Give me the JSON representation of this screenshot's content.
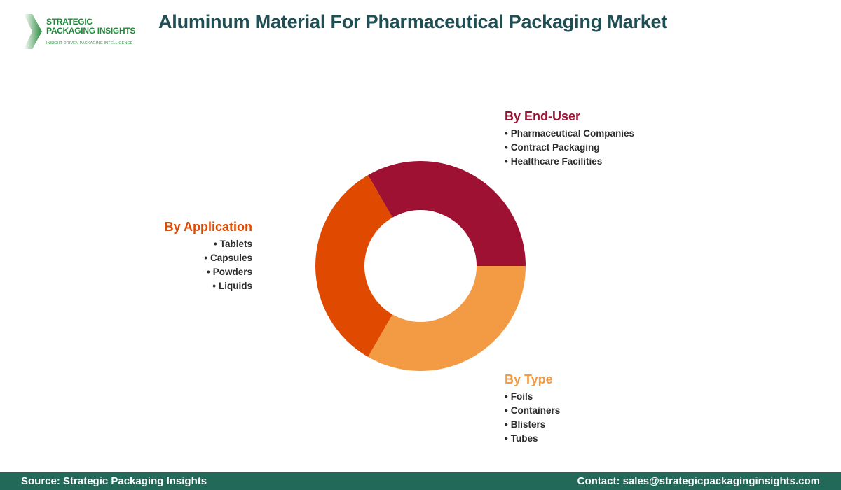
{
  "logo": {
    "line1": "STRATEGIC",
    "line2": "PACKAGING INSIGHTS",
    "tagline": "INSIGHT-DRIVEN PACKAGING INTELLIGENCE"
  },
  "title": "Aluminum Material For Pharmaceutical Packaging Market",
  "segments": {
    "end_user": {
      "heading": "By End-User",
      "color": "#9e1133",
      "items": [
        "Pharmaceutical Companies",
        "Contract Packaging",
        "Healthcare Facilities"
      ]
    },
    "application": {
      "heading": "By Application",
      "color": "#e04a00",
      "items": [
        "Tablets",
        "Capsules",
        "Powders",
        "Liquids"
      ]
    },
    "type": {
      "heading": "By Type",
      "color": "#f39a44",
      "items": [
        "Foils",
        "Containers",
        "Blisters",
        "Tubes"
      ]
    }
  },
  "footer": {
    "source": "Source: Strategic Packaging Insights",
    "contact": "Contact: sales@strategicpackaginginsights.com"
  },
  "chart_data": {
    "type": "pie",
    "subtype": "donut",
    "title": "Aluminum Material For Pharmaceutical Packaging Market",
    "categories": [
      "By End-User",
      "By Type",
      "By Application"
    ],
    "values": [
      33.33,
      33.33,
      33.34
    ],
    "colors": [
      "#9e1133",
      "#f39a44",
      "#e04a00"
    ],
    "center": [
      600,
      380
    ],
    "outer_radius": 150,
    "inner_radius": 80,
    "legend": "callout labels beside segments"
  }
}
